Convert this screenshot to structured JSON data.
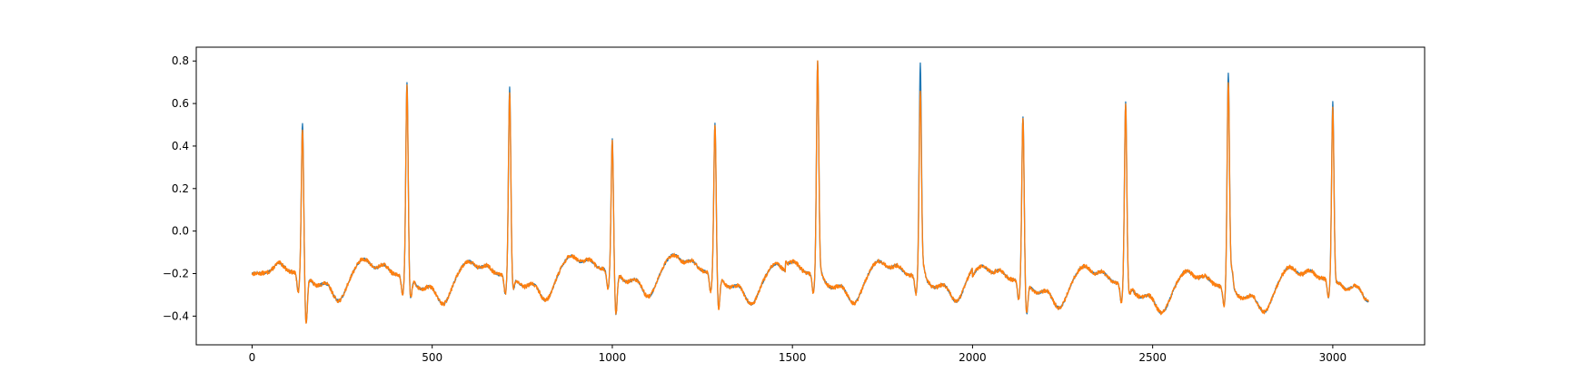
{
  "chart_data": {
    "type": "line",
    "title": "",
    "xlabel": "",
    "ylabel": "",
    "xlim": [
      -155,
      3255
    ],
    "ylim": [
      -0.535,
      0.865
    ],
    "grid": false,
    "legend": "none",
    "x_ticks": [
      0,
      500,
      1000,
      1500,
      2000,
      2500,
      3000
    ],
    "y_ticks": [
      -0.4,
      -0.2,
      0.0,
      0.2,
      0.4,
      0.6,
      0.8
    ],
    "x_tick_labels": [
      "0",
      "500",
      "1000",
      "1500",
      "2000",
      "2500",
      "3000"
    ],
    "y_tick_labels": [
      "−0.4",
      "−0.2",
      "0.0",
      "0.2",
      "0.4",
      "0.6",
      "0.8"
    ],
    "n_points": 3100,
    "beats": [
      {
        "r_index": 140,
        "r_peak_a": 0.52,
        "r_peak_b": 0.49,
        "s_trough": -0.47
      },
      {
        "r_index": 430,
        "r_peak_a": 0.71,
        "r_peak_b": 0.7,
        "s_trough": -0.35
      },
      {
        "r_index": 715,
        "r_peak_a": 0.68,
        "r_peak_b": 0.66,
        "s_trough": -0.31
      },
      {
        "r_index": 1000,
        "r_peak_a": 0.44,
        "r_peak_b": 0.43,
        "s_trough": -0.43
      },
      {
        "r_index": 1285,
        "r_peak_a": 0.51,
        "r_peak_b": 0.51,
        "s_trough": -0.4
      },
      {
        "r_index": 1570,
        "r_peak_a": 0.8,
        "r_peak_b": 0.8,
        "s_trough": -0.23
      },
      {
        "r_index": 1855,
        "r_peak_a": 0.79,
        "r_peak_b": 0.66,
        "s_trough": -0.21
      },
      {
        "r_index": 2140,
        "r_peak_a": 0.55,
        "r_peak_b": 0.54,
        "s_trough": -0.43
      },
      {
        "r_index": 2425,
        "r_peak_a": 0.61,
        "r_peak_b": 0.6,
        "s_trough": -0.33
      },
      {
        "r_index": 2710,
        "r_peak_a": 0.75,
        "r_peak_b": 0.71,
        "s_trough": -0.22
      },
      {
        "r_index": 3000,
        "r_peak_a": 0.61,
        "r_peak_b": 0.58,
        "s_trough": -0.28
      }
    ],
    "series": [
      {
        "color": "#1f77b4",
        "r_peak_key": "r_peak_a",
        "noise": 0.006,
        "seed": 7
      },
      {
        "color": "#ff7f0e",
        "r_peak_key": "r_peak_b",
        "noise": 0.01,
        "seed": 13
      }
    ]
  }
}
